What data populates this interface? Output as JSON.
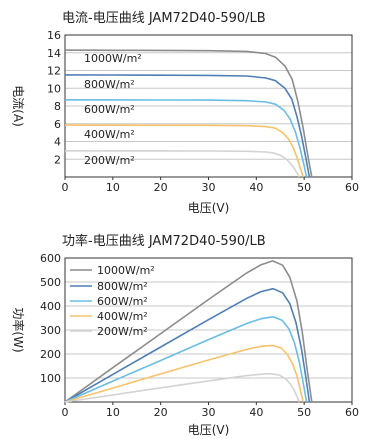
{
  "chart_data": [
    {
      "type": "line",
      "title": "电流-电压曲线    JAM72D40-590/LB",
      "xlabel": "电压(V)",
      "ylabel": "电流(A)",
      "xlim": [
        0,
        60
      ],
      "ylim": [
        0,
        16
      ],
      "xticks": [
        "0",
        "10",
        "20",
        "30",
        "40",
        "50",
        "60"
      ],
      "yticks": [
        "2",
        "4",
        "6",
        "8",
        "10",
        "12",
        "14",
        "16"
      ],
      "grid": "horizontal",
      "legend": "inline-left",
      "series": [
        {
          "name": "1000W/m²",
          "color": "#8c8c8c",
          "x": [
            0,
            10,
            20,
            30,
            38,
            42,
            44,
            46,
            47.5,
            48.7,
            49.8,
            50.8,
            51.6
          ],
          "y": [
            14.3,
            14.28,
            14.26,
            14.23,
            14.15,
            13.9,
            13.5,
            12.5,
            11.0,
            8.5,
            5.5,
            2.3,
            0
          ]
        },
        {
          "name": "800W/m²",
          "color": "#4f7fb5",
          "x": [
            0,
            10,
            20,
            30,
            38,
            42,
            44,
            46,
            47.4,
            48.5,
            49.5,
            50.4,
            51.1
          ],
          "y": [
            11.5,
            11.49,
            11.47,
            11.45,
            11.38,
            11.15,
            10.85,
            10.0,
            8.8,
            6.8,
            4.5,
            2.0,
            0
          ]
        },
        {
          "name": "600W/m²",
          "color": "#6bbde3",
          "x": [
            0,
            10,
            20,
            30,
            38,
            42,
            44,
            45.8,
            47.1,
            48.2,
            49.1,
            49.9,
            50.5
          ],
          "y": [
            8.7,
            8.69,
            8.68,
            8.66,
            8.6,
            8.45,
            8.2,
            7.5,
            6.5,
            5.0,
            3.3,
            1.5,
            0
          ]
        },
        {
          "name": "400W/m²",
          "color": "#f5c36b",
          "x": [
            0,
            10,
            20,
            30,
            38,
            42,
            44,
            45.5,
            46.7,
            47.7,
            48.5,
            49.2,
            49.8
          ],
          "y": [
            5.85,
            5.84,
            5.83,
            5.82,
            5.78,
            5.68,
            5.5,
            5.0,
            4.3,
            3.3,
            2.2,
            1.0,
            0
          ]
        },
        {
          "name": "200W/m²",
          "color": "#d3d3d3",
          "x": [
            0,
            10,
            20,
            30,
            38,
            42,
            43.5,
            45,
            46.2,
            47.1,
            47.9,
            48.5,
            49.0
          ],
          "y": [
            2.95,
            2.94,
            2.94,
            2.93,
            2.9,
            2.82,
            2.72,
            2.45,
            2.05,
            1.55,
            1.0,
            0.45,
            0
          ]
        }
      ]
    },
    {
      "type": "line",
      "title": "功率-电压曲线    JAM72D40-590/LB",
      "xlabel": "电压(V)",
      "ylabel": "功率(W)",
      "xlim": [
        0,
        60
      ],
      "ylim": [
        0,
        600
      ],
      "xticks": [
        "0",
        "10",
        "20",
        "30",
        "40",
        "50",
        "60"
      ],
      "yticks": [
        "100",
        "200",
        "300",
        "400",
        "500",
        "600"
      ],
      "grid": "horizontal",
      "legend": "top-left",
      "series": [
        {
          "name": "1000W/m²",
          "color": "#8c8c8c",
          "x": [
            0,
            10,
            20,
            30,
            38,
            41,
            43.4,
            45.5,
            47,
            48.5,
            49.6,
            50.6,
            51.6
          ],
          "y": [
            0,
            143,
            285,
            427,
            538,
            572,
            588,
            570,
            520,
            420,
            290,
            140,
            0
          ]
        },
        {
          "name": "800W/m²",
          "color": "#4f7fb5",
          "x": [
            0,
            10,
            20,
            30,
            38,
            41,
            43.5,
            45.5,
            47,
            48.3,
            49.4,
            50.3,
            51.1
          ],
          "y": [
            0,
            115,
            229,
            343,
            432,
            460,
            472,
            455,
            410,
            330,
            225,
            110,
            0
          ]
        },
        {
          "name": "600W/m²",
          "color": "#6bbde3",
          "x": [
            0,
            10,
            20,
            30,
            38,
            41,
            43.5,
            45.4,
            46.8,
            48,
            49,
            49.8,
            50.5
          ],
          "y": [
            0,
            87,
            173,
            260,
            327,
            347,
            355,
            340,
            305,
            245,
            165,
            80,
            0
          ]
        },
        {
          "name": "400W/m²",
          "color": "#f5c36b",
          "x": [
            0,
            10,
            20,
            30,
            38,
            41,
            43.4,
            45.2,
            46.5,
            47.6,
            48.5,
            49.2,
            49.8
          ],
          "y": [
            0,
            58,
            117,
            175,
            219,
            232,
            236,
            225,
            198,
            158,
            108,
            52,
            0
          ]
        },
        {
          "name": "200W/m²",
          "color": "#d3d3d3",
          "x": [
            0,
            10,
            20,
            30,
            38,
            41,
            43.2,
            44.8,
            46.1,
            47.1,
            47.9,
            48.5,
            49.0
          ],
          "y": [
            0,
            29,
            59,
            88,
            110,
            116,
            118,
            112,
            97,
            75,
            50,
            22,
            0
          ]
        }
      ]
    }
  ]
}
